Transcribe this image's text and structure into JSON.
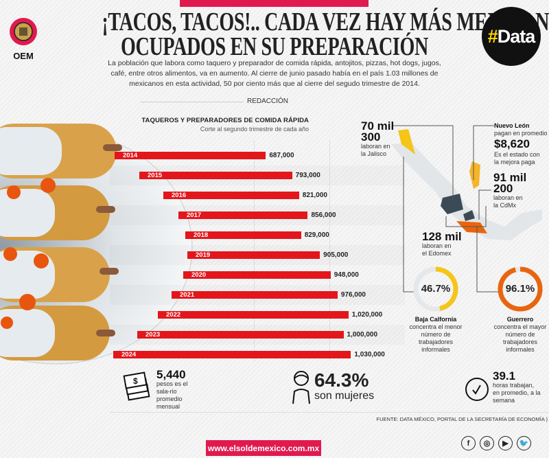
{
  "header": {
    "title_line1": "¡TACOS, TACOS!.. CADA VEZ HAY MÁS MEXICANOS",
    "title_line2": "OCUPADOS EN SU PREPARACIÓN",
    "description": "La población que labora como taquero y preparador de comida rápida, antojitos, pizzas, hot dogs, jugos, café, entre otros alimentos, va en aumento. Al cierre de junio pasado había en el país 1.03 millones de mexicanos en esta actividad, 50 por ciento más que al cierre del segudo trimestre de 2014.",
    "byline": "REDACCIÓN",
    "logo_text": "OEM",
    "badge_hash": "#",
    "badge_text": "Data"
  },
  "chart_data": {
    "type": "bar",
    "orientation": "horizontal",
    "title": "TAQUEROS Y PREPARADORES DE COMIDA RÁPIDA",
    "subtitle": "Corte al segundo trimestre de cada año",
    "categories": [
      "2014",
      "2015",
      "2016",
      "2017",
      "2018",
      "2019",
      "2020",
      "2021",
      "2022",
      "2023",
      "2024"
    ],
    "values": [
      687000,
      793000,
      821000,
      856000,
      829000,
      905000,
      948000,
      976000,
      1020000,
      1000000,
      1030000
    ],
    "labels": [
      "687,000",
      "793,000",
      "821,000",
      "856,000",
      "829,000",
      "905,000",
      "948,000",
      "976,000",
      "1,020,000",
      "1,000,000",
      "1,030,000"
    ],
    "bar_color": "#e3161b"
  },
  "map": {
    "jalisco": {
      "value_l1": "70 mil",
      "value_l2": "300",
      "text": "laboran en la Jalisco"
    },
    "nuevo_leon": {
      "state": "Nuevo León",
      "pre": "pagan en promedio",
      "value": "$8,620",
      "text": "Es el estado con la mejora paga"
    },
    "cdmx": {
      "value_l1": "91 mil",
      "value_l2": "200",
      "text": "laboran en la CdMx"
    },
    "edomex": {
      "value": "128 mil",
      "text": "laboran en el Edomex"
    },
    "baja_california": {
      "pct": "46.7%",
      "fraction": 0.467,
      "state": "Baja Calfornia",
      "text": "concentra el menor número de trabajadores informales",
      "color": "#f5c518"
    },
    "guerrero": {
      "pct": "96.1%",
      "fraction": 0.961,
      "state": "Guerrero",
      "text": "concentra el mayor número de trabajadores informales",
      "color": "#e8650f"
    }
  },
  "stats": {
    "salary": {
      "value": "5,440",
      "text": "pesos es el sala-rio promedio mensual",
      "icon": "money-icon"
    },
    "women": {
      "value": "64.3%",
      "text": "son mujeres",
      "icon": "woman-icon"
    },
    "hours": {
      "value": "39.1",
      "text": "horas trabajan, en promedio, a la semana",
      "icon": "clock-icon"
    }
  },
  "footer": {
    "source": "FUENTE: DATA MÉXICO, PORTAL DE LA SECRETARÍA DE ECONOMÍA )",
    "url": "www.elsoldemexico.com.mx",
    "social": [
      "f",
      "◎",
      "▶",
      "🐦"
    ]
  }
}
